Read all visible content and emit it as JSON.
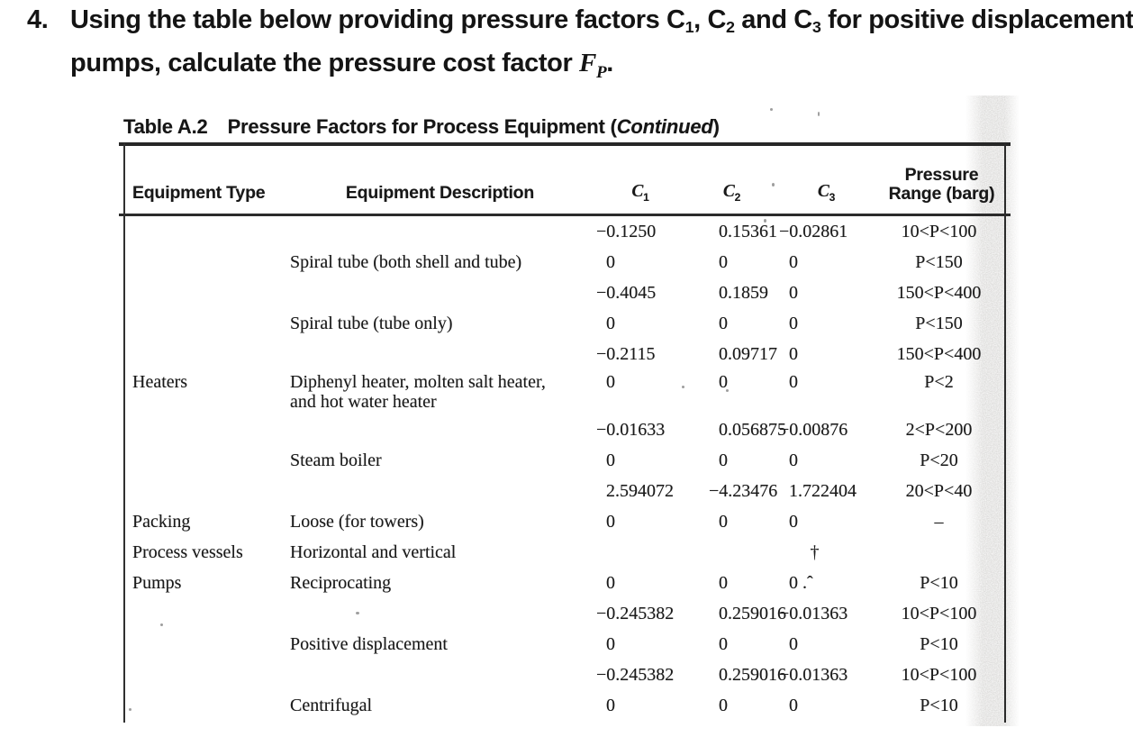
{
  "question": {
    "number": "4.",
    "line1": {
      "a": "Using the table below providing pressure factors C",
      "s1": "1",
      "b": ", C",
      "s2": "2",
      "c": " and C",
      "s3": "3",
      "d": " for positive displacement"
    },
    "line2_prefix": "pumps, calculate the pressure cost factor ",
    "fp_symbol": "F",
    "fp_subscript": "P",
    "line2_suffix": "."
  },
  "table": {
    "title_label": "Table A.2",
    "title_text": "Pressure Factors for Process Equipment (",
    "title_italic": "Continued",
    "title_close": ")",
    "headers": {
      "type": "Equipment Type",
      "description": "Equipment Description",
      "c_symbol": "C",
      "c_subscripts": [
        "1",
        "2",
        "3"
      ],
      "range_line1": "Pressure",
      "range_line2": "Range (barg)"
    },
    "rows": [
      {
        "type": "",
        "desc": "",
        "c1": "−0.1250",
        "c2": "0.15361",
        "c3": "−0.02861",
        "range": "10<P<100"
      },
      {
        "type": "",
        "desc": "Spiral tube (both shell and tube)",
        "c1": "0",
        "c2": "0",
        "c3": "0",
        "range": "P<150"
      },
      {
        "type": "",
        "desc": "",
        "c1": "−0.4045",
        "c2": "0.1859",
        "c3": "0",
        "range": "150<P<400"
      },
      {
        "type": "",
        "desc": "Spiral tube (tube only)",
        "c1": "0",
        "c2": "0",
        "c3": "0",
        "range": "P<150"
      },
      {
        "type": "",
        "desc": "",
        "c1": "−0.2115",
        "c2": "0.09717",
        "c3": "0",
        "range": "150<P<400"
      },
      {
        "type": "Heaters",
        "desc": "Diphenyl heater, molten salt heater,\nand hot water heater",
        "c1": "0",
        "c2": "0",
        "c3": "0",
        "range": "P<2",
        "tall": true
      },
      {
        "type": "",
        "desc": "",
        "c1": "−0.01633",
        "c2": "0.056875",
        "c3": "−0.00876",
        "range": "2<P<200"
      },
      {
        "type": "",
        "desc": "Steam boiler",
        "c1": "0",
        "c2": "0",
        "c3": "0",
        "range": "P<20"
      },
      {
        "type": "",
        "desc": "",
        "c1": "2.594072",
        "c2": "−4.23476",
        "c3": "1.722404",
        "range": "20<P<40"
      },
      {
        "type": "Packing",
        "desc": "Loose (for towers)",
        "c1": "0",
        "c2": "0",
        "c3": "0",
        "range": "–"
      },
      {
        "type": "Process vessels",
        "desc": "Horizontal and vertical",
        "c1": "",
        "c2": "",
        "c3": "†",
        "range": ""
      },
      {
        "type": "Pumps",
        "desc": "Reciprocating",
        "c1": "0",
        "c2": "0",
        "c3": "0 .ˆ",
        "range": "P<10"
      },
      {
        "type": "",
        "desc": "",
        "c1": "−0.245382",
        "c2": "0.259016",
        "c3": "−0.01363",
        "range": "10<P<100"
      },
      {
        "type": "",
        "desc": "Positive displacement",
        "c1": "0",
        "c2": "0",
        "c3": "0",
        "range": "P<10"
      },
      {
        "type": "",
        "desc": "",
        "c1": "−0.245382",
        "c2": "0.259016",
        "c3": "−0.01363",
        "range": "10<P<100"
      },
      {
        "type": "",
        "desc": "Centrifugal",
        "c1": "0",
        "c2": "0",
        "c3": "0",
        "range": "P<10"
      }
    ]
  }
}
